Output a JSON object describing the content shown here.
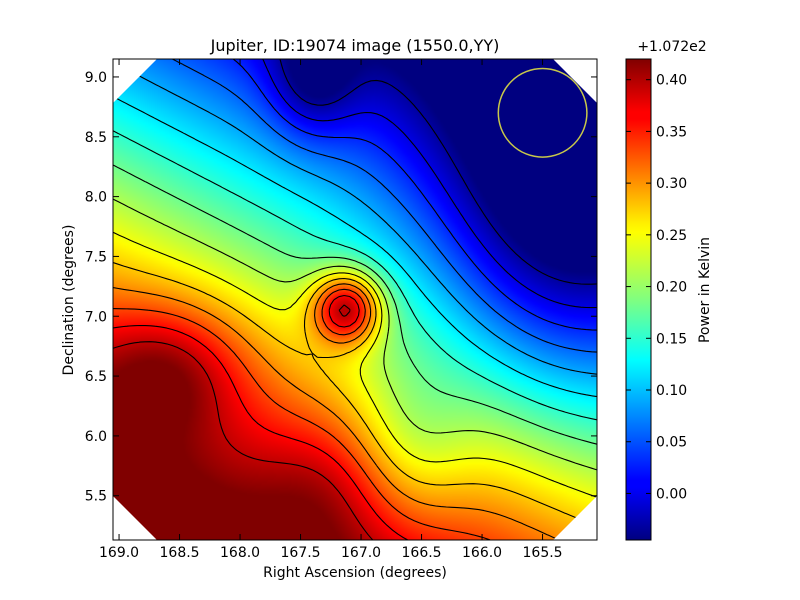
{
  "chart_data": {
    "type": "heatmap",
    "title": "Jupiter, ID:19074 image (1550.0,YY)",
    "xlabel": "Right Ascension (degrees)",
    "ylabel": "Declination (degrees)",
    "xlim": [
      169.05,
      165.05
    ],
    "ylim": [
      5.13,
      9.15
    ],
    "x_reversed": true,
    "x_ticks": [
      169.0,
      168.5,
      168.0,
      167.5,
      167.0,
      166.5,
      166.0,
      165.5
    ],
    "x_tick_labels": [
      "169.0",
      "168.5",
      "168.0",
      "167.5",
      "167.0",
      "166.5",
      "166.0",
      "165.5"
    ],
    "y_ticks": [
      5.5,
      6.0,
      6.5,
      7.0,
      7.5,
      8.0,
      8.5,
      9.0
    ],
    "y_tick_labels": [
      "5.5",
      "6.0",
      "6.5",
      "7.0",
      "7.5",
      "8.0",
      "8.5",
      "9.0"
    ],
    "colormap": "jet",
    "colorbar": {
      "label": "Power in Kelvin",
      "offset_label": "+1.072e2",
      "range": [
        -0.045,
        0.42
      ],
      "ticks": [
        0.0,
        0.05,
        0.1,
        0.15,
        0.2,
        0.25,
        0.3,
        0.35,
        0.4
      ],
      "tick_labels": [
        "0.00",
        "0.05",
        "0.10",
        "0.15",
        "0.20",
        "0.25",
        "0.30",
        "0.35",
        "0.40"
      ]
    },
    "features": [
      {
        "kind": "peak",
        "ra": 167.12,
        "dec": 7.07,
        "value": 0.42
      },
      {
        "kind": "local-maximum",
        "ra": 168.55,
        "dec": 6.55,
        "value": 0.33
      },
      {
        "kind": "minimum",
        "ra": 167.4,
        "dec": 9.0,
        "value": -0.04
      }
    ],
    "contour_levels": [
      -0.03,
      0.0,
      0.03,
      0.06,
      0.09,
      0.12,
      0.15,
      0.18,
      0.21,
      0.24,
      0.27,
      0.3,
      0.33,
      0.36,
      0.39
    ],
    "beam_circle": {
      "ra": 165.5,
      "dec": 8.7,
      "radius_deg": 0.37,
      "color": "#c8c84a"
    },
    "contour_color": "#000000"
  }
}
